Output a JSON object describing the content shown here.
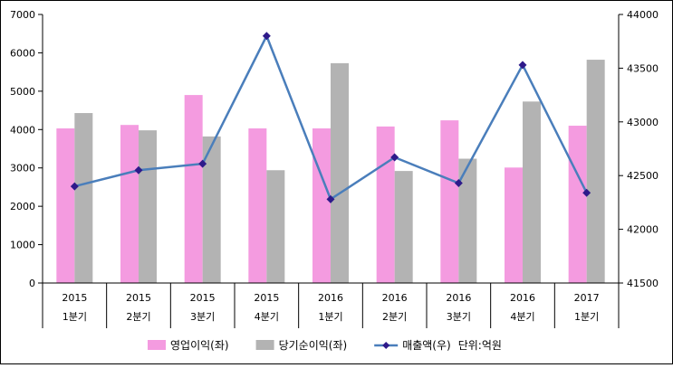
{
  "chart_data": {
    "type": "bar",
    "categories": [
      [
        "2015",
        "1분기"
      ],
      [
        "2015",
        "2분기"
      ],
      [
        "2015",
        "3분기"
      ],
      [
        "2015",
        "4분기"
      ],
      [
        "2016",
        "1분기"
      ],
      [
        "2016",
        "2분기"
      ],
      [
        "2016",
        "3분기"
      ],
      [
        "2016",
        "4분기"
      ],
      [
        "2017",
        "1분기"
      ]
    ],
    "series": [
      {
        "name": "영업이익(좌)",
        "kind": "bar",
        "axis": "left",
        "color": "#f49be0",
        "values": [
          4030,
          4120,
          4900,
          4030,
          4030,
          4080,
          4240,
          3010,
          4100
        ]
      },
      {
        "name": "당기순이익(좌)",
        "kind": "bar",
        "axis": "left",
        "color": "#b3b3b3",
        "values": [
          4430,
          3980,
          3820,
          2940,
          5730,
          2920,
          3240,
          4730,
          5820
        ]
      },
      {
        "name": "매출액(우)",
        "kind": "line",
        "axis": "right",
        "color": "#4a7ebb",
        "marker_color": "#2e1a8a",
        "values": [
          42400,
          42550,
          42610,
          43800,
          42280,
          42670,
          42430,
          43530,
          42340
        ]
      }
    ],
    "y_left": {
      "min": 0,
      "max": 7000,
      "step": 1000
    },
    "y_right": {
      "min": 41500,
      "max": 44000,
      "step": 500
    },
    "legend_note": "단위:억원",
    "legend_placement": "bottom",
    "grid": false
  }
}
